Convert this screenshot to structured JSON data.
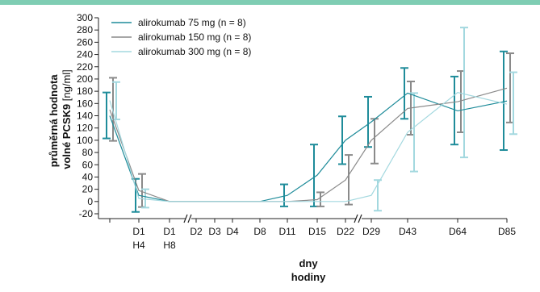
{
  "chart_data": {
    "type": "line",
    "ylabel_bold": "průměrná hodnota",
    "ylabel_bold2": "volné PCSK9",
    "ylabel_unit": "[ng/ml]",
    "xlabel_line1": "dny",
    "xlabel_line2": "hodiny",
    "ylim": [
      -20,
      300
    ],
    "yticks": [
      -20,
      0,
      20,
      40,
      60,
      80,
      100,
      120,
      140,
      160,
      180,
      200,
      220,
      240,
      260,
      280,
      300
    ],
    "xticks": [
      {
        "id": "d0",
        "l1": "",
        "l2": ""
      },
      {
        "id": "h4",
        "l1": "D1",
        "l2": "H4"
      },
      {
        "id": "h8",
        "l1": "D1",
        "l2": "H8"
      },
      {
        "id": "d2",
        "l1": "D2",
        "l2": ""
      },
      {
        "id": "d3",
        "l1": "D3",
        "l2": ""
      },
      {
        "id": "d4",
        "l1": "D4",
        "l2": ""
      },
      {
        "id": "d8",
        "l1": "D8",
        "l2": ""
      },
      {
        "id": "d11",
        "l1": "D11",
        "l2": ""
      },
      {
        "id": "d15",
        "l1": "D15",
        "l2": ""
      },
      {
        "id": "d22",
        "l1": "D22",
        "l2": ""
      },
      {
        "id": "d29",
        "l1": "D29",
        "l2": ""
      },
      {
        "id": "d43",
        "l1": "D43",
        "l2": ""
      },
      {
        "id": "d64",
        "l1": "D64",
        "l2": ""
      },
      {
        "id": "d85",
        "l1": "D85",
        "l2": ""
      }
    ],
    "series": [
      {
        "name": "alirokumab  75 mg (n = 8)",
        "color": "#1f8c9a",
        "points": [
          {
            "x": "d0",
            "y": 140,
            "lo": 103,
            "hi": 178
          },
          {
            "x": "h4",
            "y": 10,
            "lo": -17,
            "hi": 37
          },
          {
            "x": "h8",
            "y": 0
          },
          {
            "x": "d8",
            "y": 0
          },
          {
            "x": "d11",
            "y": 10,
            "lo": -8,
            "hi": 28
          },
          {
            "x": "d15",
            "y": 43,
            "lo": -8,
            "hi": 93
          },
          {
            "x": "d22",
            "y": 100,
            "lo": 61,
            "hi": 139
          },
          {
            "x": "d29",
            "y": 130,
            "lo": 89,
            "hi": 171
          },
          {
            "x": "d43",
            "y": 177,
            "lo": 135,
            "hi": 218
          },
          {
            "x": "d64",
            "y": 148,
            "lo": 93,
            "hi": 204
          },
          {
            "x": "d85",
            "y": 164,
            "lo": 84,
            "hi": 245
          }
        ]
      },
      {
        "name": "alirokumab 150 mg (n = 8)",
        "color": "#8a8a8a",
        "points": [
          {
            "x": "d0",
            "y": 150,
            "lo": 99,
            "hi": 202
          },
          {
            "x": "h4",
            "y": 18,
            "lo": -9,
            "hi": 45
          },
          {
            "x": "h8",
            "y": 0
          },
          {
            "x": "d8",
            "y": 0
          },
          {
            "x": "d11",
            "y": 0
          },
          {
            "x": "d15",
            "y": 3,
            "lo": -8,
            "hi": 15
          },
          {
            "x": "d22",
            "y": 35,
            "lo": -5,
            "hi": 76
          },
          {
            "x": "d29",
            "y": 100,
            "lo": 62,
            "hi": 135
          },
          {
            "x": "d43",
            "y": 152,
            "lo": 109,
            "hi": 196
          },
          {
            "x": "d64",
            "y": 163,
            "lo": 113,
            "hi": 213
          },
          {
            "x": "d85",
            "y": 185,
            "lo": 129,
            "hi": 242
          }
        ]
      },
      {
        "name": "alirokumab 300 mg (n = 8)",
        "color": "#a3d8df",
        "points": [
          {
            "x": "d0",
            "y": 165,
            "lo": 134,
            "hi": 195
          },
          {
            "x": "h4",
            "y": 5,
            "lo": -10,
            "hi": 20
          },
          {
            "x": "h8",
            "y": 0
          },
          {
            "x": "d8",
            "y": 0
          },
          {
            "x": "d22",
            "y": 0
          },
          {
            "x": "d29",
            "y": 10,
            "lo": -15,
            "hi": 35
          },
          {
            "x": "d43",
            "y": 113,
            "lo": 49,
            "hi": 177
          },
          {
            "x": "d64",
            "y": 178,
            "lo": 72,
            "hi": 284
          },
          {
            "x": "d85",
            "y": 159,
            "lo": 110,
            "hi": 211
          }
        ]
      }
    ]
  }
}
